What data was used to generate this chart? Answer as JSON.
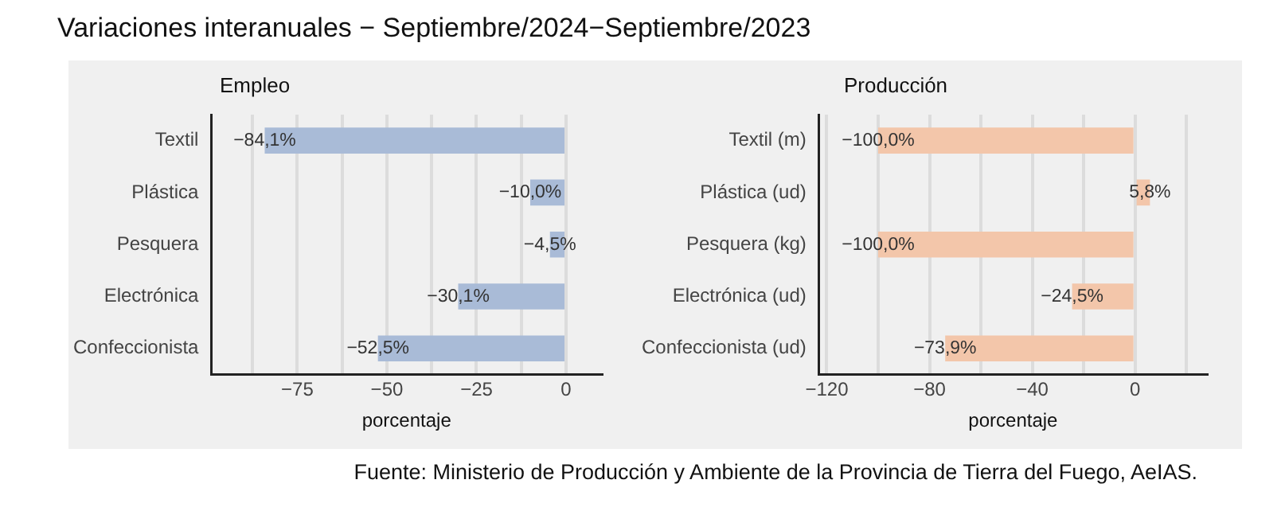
{
  "chart_data": [
    {
      "type": "bar",
      "orientation": "horizontal",
      "title": "Variaciones interanuales − Septiembre/2024−Septiembre/2023",
      "subtitle": "Empleo",
      "xlabel": "porcentaje",
      "categories": [
        "Textil",
        "Plástica",
        "Pesquera",
        "Electrónica",
        "Confeccionista"
      ],
      "values": [
        -84.1,
        -10.0,
        -4.5,
        -30.1,
        -52.5
      ],
      "value_labels": [
        "−84,1%",
        "−10,0%",
        "−4,5%",
        "−30,1%",
        "−52,5%"
      ],
      "color": "#a9bbd7",
      "xlim": [
        -99,
        10
      ],
      "xticks": [
        {
          "value": -87.5,
          "label": null
        },
        {
          "value": -75,
          "label": "−75"
        },
        {
          "value": -62.5,
          "label": null
        },
        {
          "value": -50,
          "label": "−50"
        },
        {
          "value": -37.5,
          "label": null
        },
        {
          "value": -25,
          "label": "−25"
        },
        {
          "value": -12.5,
          "label": null
        },
        0
      ],
      "grid": "x",
      "legend": false
    },
    {
      "type": "bar",
      "orientation": "horizontal",
      "subtitle": "Producción",
      "xlabel": "porcentaje",
      "categories": [
        "Textil (m)",
        "Plástica (ud)",
        "Pesquera (kg)",
        "Electrónica (ud)",
        "Confeccionista (ud)"
      ],
      "values": [
        -100.0,
        5.8,
        -100.0,
        -24.5,
        -73.9
      ],
      "value_labels": [
        "−100,0%",
        "5,8%",
        "−100,0%",
        "−24,5%",
        "−73,9%"
      ],
      "color": "#f3c6aa",
      "xlim": [
        -123,
        28
      ],
      "xticks": [
        {
          "value": -120,
          "label": "−120"
        },
        {
          "value": -100,
          "label": null
        },
        {
          "value": -80,
          "label": "−80"
        },
        {
          "value": -60,
          "label": null
        },
        {
          "value": -40,
          "label": "−40"
        },
        {
          "value": -20,
          "label": null
        },
        0,
        {
          "value": 20,
          "label": null
        }
      ],
      "grid": "x",
      "legend": false,
      "annotations": [
        "Fuente: Ministerio de Producción y Ambiente de la Provincia de Tierra del Fuego, AeIAS."
      ]
    }
  ]
}
